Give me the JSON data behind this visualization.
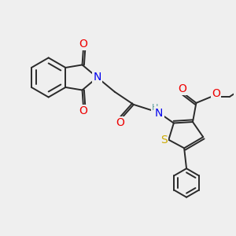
{
  "bg_color": "#efefef",
  "bond_color": "#2a2a2a",
  "bond_width": 1.4,
  "atom_colors": {
    "N": "#0000ee",
    "O": "#ee0000",
    "S": "#ccaa00",
    "H": "#5a9a9a",
    "C": "#2a2a2a"
  },
  "font_size": 9,
  "fig_size": [
    3.0,
    3.0
  ],
  "xlim": [
    0,
    10
  ],
  "ylim": [
    0,
    10
  ]
}
